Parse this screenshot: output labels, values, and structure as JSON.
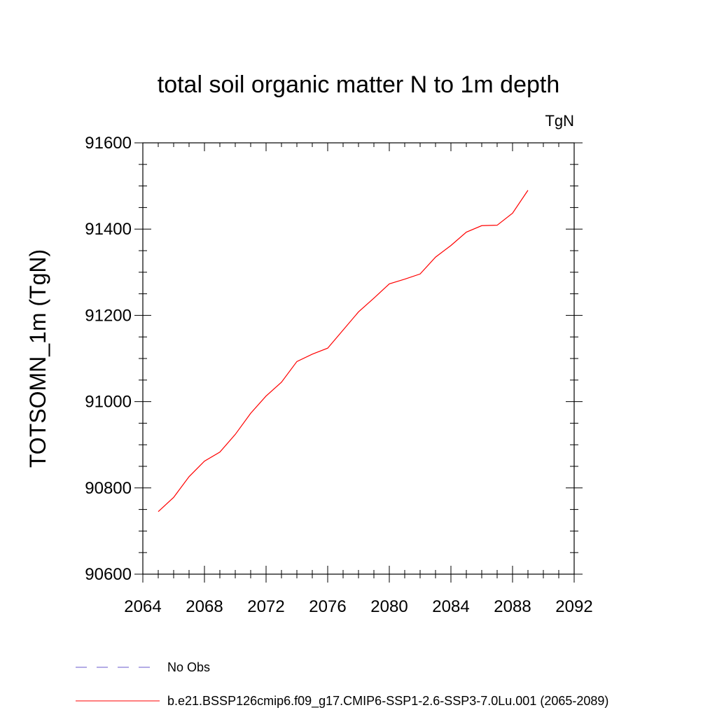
{
  "chart_data": {
    "type": "line",
    "title": "total soil organic matter N to 1m depth",
    "units": "TgN",
    "xlabel": "",
    "ylabel": "TOTSOMN_1m  (TgN)",
    "xlim": [
      2064,
      2092
    ],
    "ylim": [
      90600,
      91600
    ],
    "xticks": [
      "2064",
      "2068",
      "2072",
      "2076",
      "2080",
      "2084",
      "2088",
      "2092"
    ],
    "yticks": [
      "90600",
      "90800",
      "91000",
      "91200",
      "91400",
      "91600"
    ],
    "grid": false,
    "legend_position": "bottom",
    "series": [
      {
        "name": "No Obs",
        "color": "#6a5acd",
        "dash": "dashed",
        "x": [],
        "values": []
      },
      {
        "name": "b.e21.BSSP126cmip6.f09_g17.CMIP6-SSP1-2.6-SSP3-7.0Lu.001 (2065-2089)",
        "color": "#ff0000",
        "dash": "solid",
        "x": [
          2065,
          2066,
          2067,
          2068,
          2069,
          2070,
          2071,
          2072,
          2073,
          2074,
          2075,
          2076,
          2077,
          2078,
          2079,
          2080,
          2081,
          2082,
          2083,
          2084,
          2085,
          2086,
          2087,
          2088,
          2089
        ],
        "values": [
          90745,
          90778,
          90826,
          90862,
          90883,
          90924,
          90973,
          91013,
          91045,
          91093,
          91110,
          91124,
          91166,
          91208,
          91240,
          91273,
          91284,
          91296,
          91335,
          91362,
          91393,
          91408,
          91409,
          91437,
          91490
        ]
      }
    ]
  }
}
